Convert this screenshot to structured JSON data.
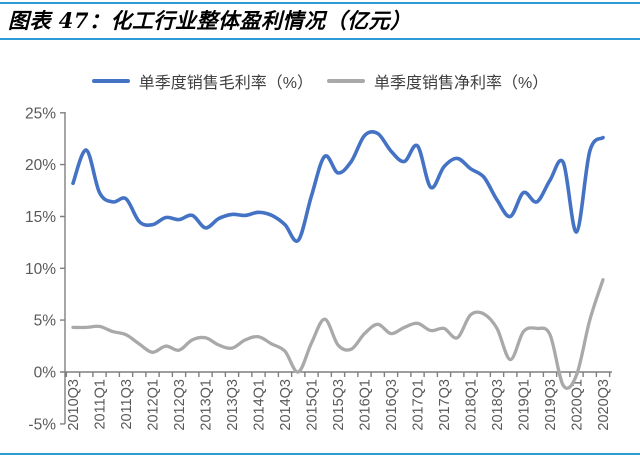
{
  "header": {
    "title": "图表 47：化工行业整体盈利情况（亿元）"
  },
  "accent_rule_color": "#2e9bd6",
  "legend": {
    "items": [
      {
        "label": "单季度销售毛利率（%）",
        "color": "#4472c4"
      },
      {
        "label": "单季度销售净利率（%）",
        "color": "#a9a9a9"
      }
    ]
  },
  "chart_data": {
    "type": "line",
    "title": "化工行业整体盈利情况（亿元）",
    "smoothed": true,
    "grid": "none",
    "legend_position": "top",
    "xlabel": "",
    "ylabel": "",
    "ylim": [
      -5,
      25
    ],
    "y_tick_values": [
      25,
      20,
      15,
      10,
      5,
      0,
      -5
    ],
    "y_tick_labels": [
      "25%",
      "20%",
      "15%",
      "10%",
      "5%",
      "0%",
      "-5%"
    ],
    "x_tick_step": 2,
    "x_labels_rotation_deg": 90,
    "categories": [
      "2010Q3",
      "2010Q4",
      "2011Q1",
      "2011Q2",
      "2011Q3",
      "2011Q4",
      "2012Q1",
      "2012Q2",
      "2012Q3",
      "2012Q4",
      "2013Q1",
      "2013Q2",
      "2013Q3",
      "2013Q4",
      "2014Q1",
      "2014Q2",
      "2014Q3",
      "2014Q4",
      "2015Q1",
      "2015Q2",
      "2015Q3",
      "2015Q4",
      "2016Q1",
      "2016Q2",
      "2016Q3",
      "2016Q4",
      "2017Q1",
      "2017Q2",
      "2017Q3",
      "2017Q4",
      "2018Q1",
      "2018Q2",
      "2018Q3",
      "2018Q4",
      "2019Q1",
      "2019Q2",
      "2019Q3",
      "2019Q4",
      "2020Q1",
      "2020Q2",
      "2020Q3"
    ],
    "axis_color": "#7f7f7f",
    "tick_label_color": "#595959",
    "series": [
      {
        "name": "单季度销售毛利率（%）",
        "color": "#4472c4",
        "stroke_width": 3.6,
        "values": [
          18.2,
          21.4,
          17.3,
          16.4,
          16.7,
          14.5,
          14.2,
          14.9,
          14.7,
          15.1,
          13.9,
          14.8,
          15.2,
          15.1,
          15.4,
          15.1,
          14.2,
          12.7,
          17.0,
          20.8,
          19.2,
          20.3,
          22.8,
          23.0,
          21.3,
          20.3,
          21.8,
          17.8,
          19.8,
          20.6,
          19.6,
          18.8,
          16.6,
          15.0,
          17.3,
          16.4,
          18.5,
          20.2,
          13.5,
          21.3,
          22.6
        ]
      },
      {
        "name": "单季度销售净利率（%）",
        "color": "#a9a9a9",
        "stroke_width": 3.3,
        "values": [
          4.3,
          4.3,
          4.4,
          3.9,
          3.6,
          2.7,
          1.9,
          2.5,
          2.1,
          3.1,
          3.3,
          2.6,
          2.3,
          3.1,
          3.4,
          2.7,
          2.0,
          0.0,
          2.8,
          5.1,
          2.6,
          2.2,
          3.7,
          4.6,
          3.7,
          4.3,
          4.7,
          4.0,
          4.2,
          3.3,
          5.5,
          5.6,
          4.2,
          1.2,
          3.9,
          4.2,
          3.6,
          -1.3,
          -0.3,
          5.0,
          8.9
        ]
      }
    ]
  }
}
